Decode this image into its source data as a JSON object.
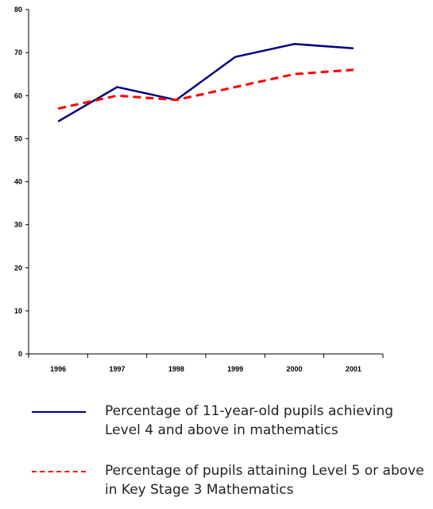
{
  "chart_data": {
    "type": "line",
    "x": [
      "1996",
      "1997",
      "1998",
      "1999",
      "2000",
      "2001"
    ],
    "y_ticks": [
      "0",
      "10",
      "20",
      "30",
      "40",
      "50",
      "60",
      "70",
      "80"
    ],
    "ylim": [
      0,
      80
    ],
    "grid": false,
    "legend_position": "bottom",
    "series": [
      {
        "name": "Percentage of 11-year-old pupils achieving Level 4 and above in mathematics",
        "values": [
          54,
          62,
          59,
          69,
          72,
          71
        ],
        "color": "#000080",
        "style": "solid"
      },
      {
        "name": "Percentage of pupils attaining Level 5 or above in Key Stage 3 Mathematics",
        "values": [
          57,
          60,
          59,
          62,
          65,
          66
        ],
        "color": "#ff0000",
        "style": "dashed"
      }
    ]
  }
}
